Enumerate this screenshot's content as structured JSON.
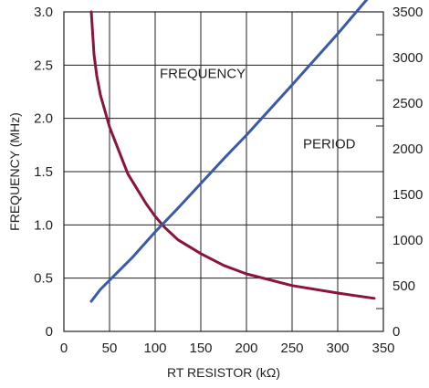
{
  "chart_data": {
    "type": "line",
    "title": "",
    "xlabel": "RT RESISTOR (kΩ)",
    "ylabel": "FREQUENCY (MHz)",
    "ylabel_right": "",
    "xlim": [
      0,
      350
    ],
    "ylim": [
      0,
      3.0
    ],
    "y2lim": [
      0,
      3500
    ],
    "grid": true,
    "x_ticks": [
      "0",
      "50",
      "100",
      "150",
      "200",
      "250",
      "300",
      "350"
    ],
    "y_ticks": [
      "0",
      "0.5",
      "1.0",
      "1.5",
      "2.0",
      "2.5",
      "3.0"
    ],
    "y2_ticks": [
      "0",
      "500",
      "1000",
      "1500",
      "2000",
      "2500",
      "3000",
      "3500"
    ],
    "series": [
      {
        "name": "FREQUENCY",
        "axis": "left",
        "color": "#8b1538",
        "x": [
          30,
          33,
          36,
          40,
          45,
          50,
          60,
          70,
          80,
          90,
          100,
          110,
          125,
          150,
          175,
          200,
          250,
          300,
          340
        ],
        "y": [
          3.0,
          2.6,
          2.4,
          2.22,
          2.07,
          1.92,
          1.7,
          1.48,
          1.34,
          1.2,
          1.08,
          0.98,
          0.86,
          0.73,
          0.62,
          0.54,
          0.43,
          0.36,
          0.31
        ]
      },
      {
        "name": "PERIOD",
        "axis": "right",
        "color": "#3a5aa8",
        "x": [
          30,
          40,
          50,
          75,
          100,
          125,
          150,
          175,
          200,
          250,
          300,
          340
        ],
        "y": [
          330,
          460,
          560,
          810,
          1090,
          1350,
          1620,
          1890,
          2150,
          2700,
          3260,
          3730
        ]
      }
    ],
    "annotations": [
      {
        "text": "FREQUENCY",
        "x": 105,
        "y": 2.38
      },
      {
        "text": "PERIOD",
        "x": 262,
        "y": 1.72
      }
    ]
  }
}
